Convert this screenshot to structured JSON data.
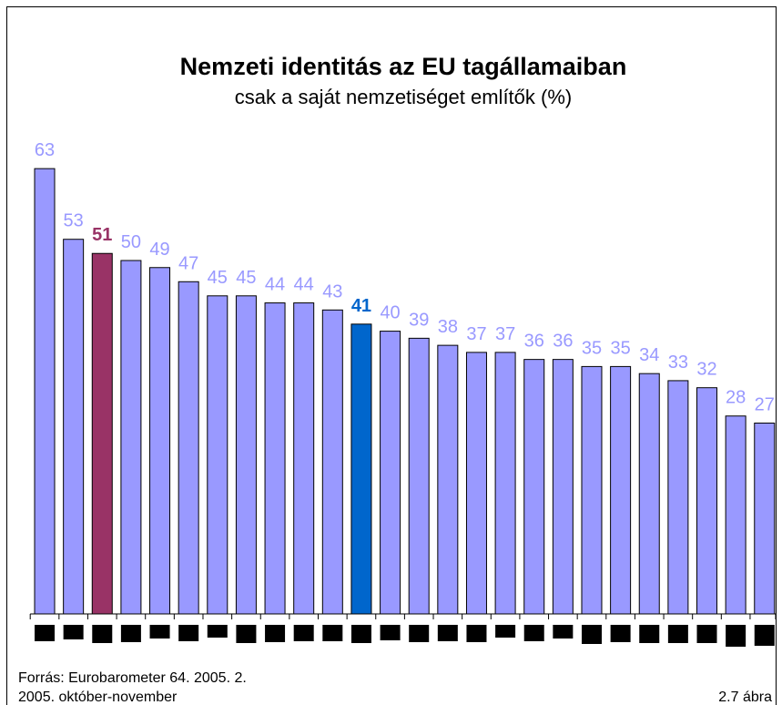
{
  "chart_data": {
    "type": "bar",
    "title": "Nemzeti identitás az EU tagállamaiban",
    "subtitle": "csak a saját nemzetiséget említők (%)",
    "categories": [
      null,
      null,
      null,
      null,
      null,
      null,
      null,
      null,
      null,
      null,
      null,
      null,
      null,
      null,
      null,
      null,
      null,
      null,
      null,
      null,
      null,
      null,
      null,
      null,
      null,
      null
    ],
    "values": [
      63,
      53,
      51,
      50,
      49,
      47,
      45,
      45,
      44,
      44,
      43,
      41,
      40,
      39,
      38,
      37,
      37,
      36,
      36,
      35,
      35,
      34,
      33,
      32,
      28,
      27
    ],
    "colors": [
      "#9999ff",
      "#9999ff",
      "#993366",
      "#9999ff",
      "#9999ff",
      "#9999ff",
      "#9999ff",
      "#9999ff",
      "#9999ff",
      "#9999ff",
      "#9999ff",
      "#0066cc",
      "#9999ff",
      "#9999ff",
      "#9999ff",
      "#9999ff",
      "#9999ff",
      "#9999ff",
      "#9999ff",
      "#9999ff",
      "#9999ff",
      "#9999ff",
      "#9999ff",
      "#9999ff",
      "#9999ff",
      "#9999ff"
    ],
    "bold_labels": [
      2,
      11
    ],
    "ylim": [
      0,
      70
    ],
    "source": "Forrás: Eurobarometer 64. 2005. 2.",
    "period": "2005. október-november",
    "figure": "2.7 ábra"
  }
}
